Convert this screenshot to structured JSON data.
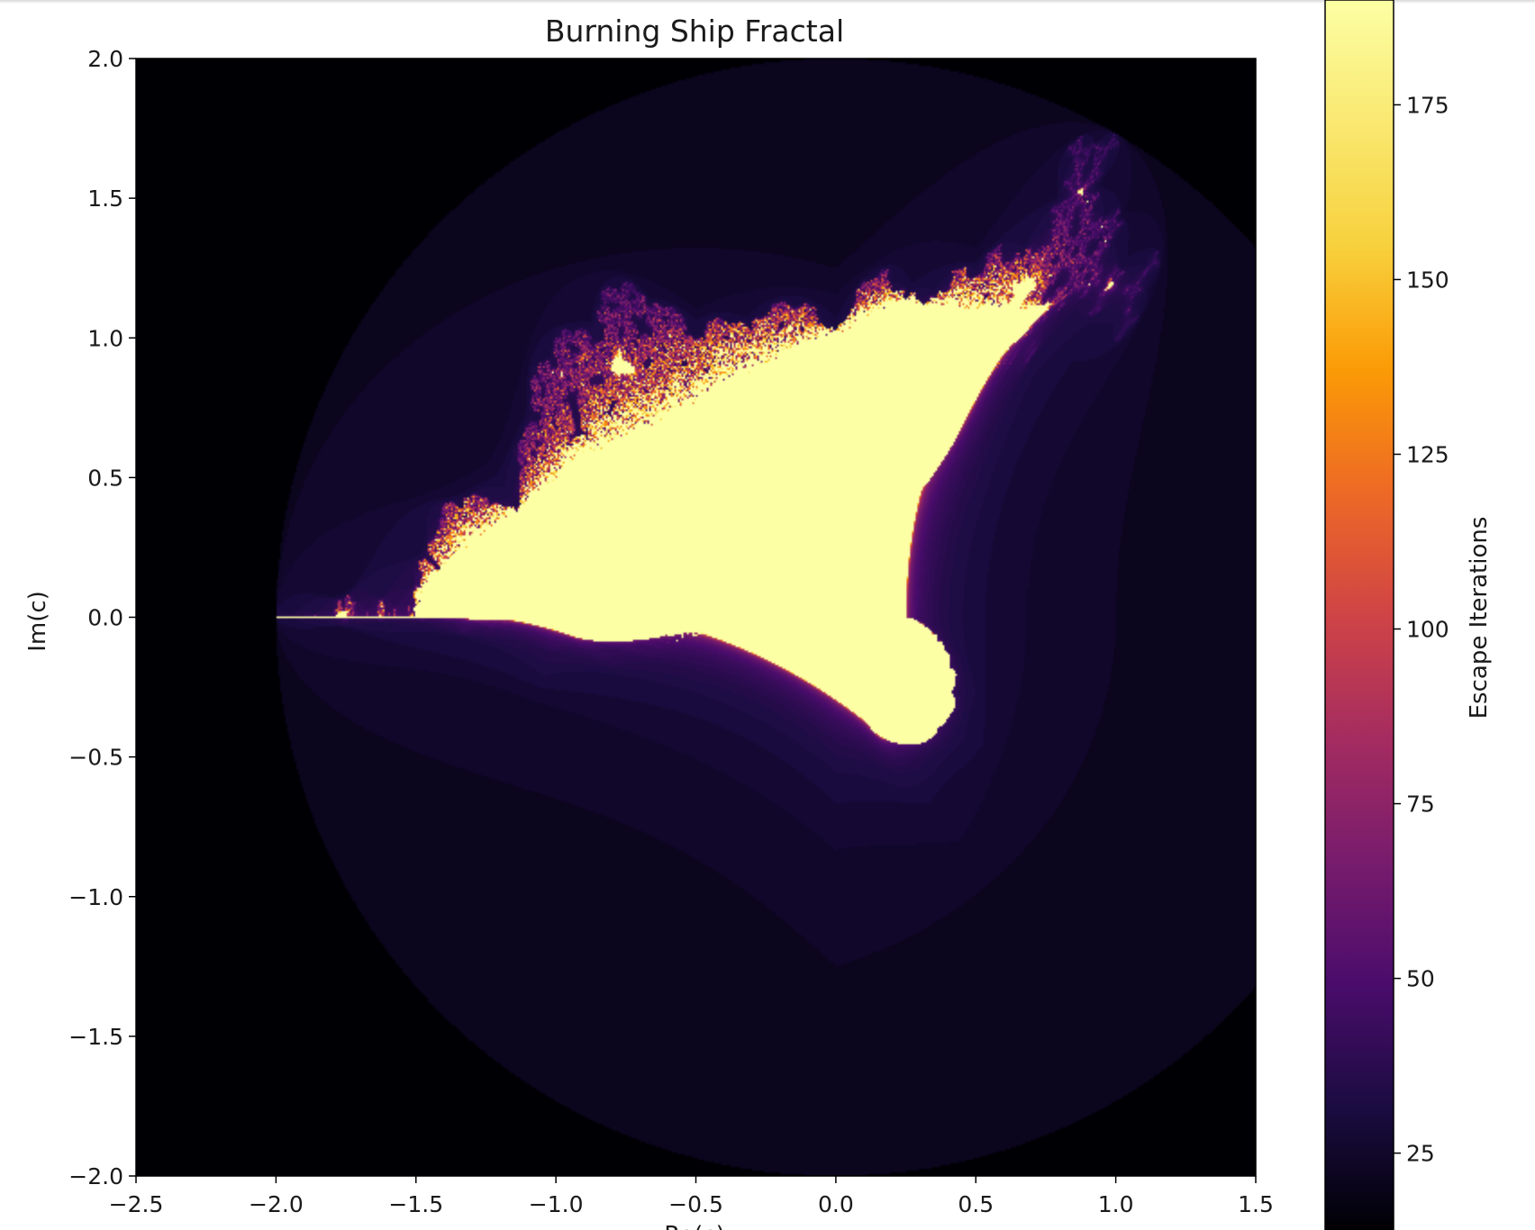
{
  "chart_data": {
    "type": "heatmap",
    "title": "Burning Ship Fractal",
    "xlabel": "Re(c)",
    "ylabel": "Im(c)",
    "xlim": [
      -2.5,
      1.5
    ],
    "ylim": [
      -2.0,
      2.0
    ],
    "x_ticks": [
      "−2.5",
      "−2.0",
      "−1.5",
      "−1.0",
      "−0.5",
      "0.0",
      "0.5",
      "1.0",
      "1.5"
    ],
    "y_ticks": [
      "−2.0",
      "−1.5",
      "−1.0",
      "−0.5",
      "0.0",
      "0.5",
      "1.0",
      "1.5",
      "2.0"
    ],
    "x_tick_values": [
      -2.5,
      -2.0,
      -1.5,
      -1.0,
      -0.5,
      0.0,
      0.5,
      1.0,
      1.5
    ],
    "y_tick_values": [
      -2.0,
      -1.5,
      -1.0,
      -0.5,
      0.0,
      0.5,
      1.0,
      1.5,
      2.0
    ],
    "colormap": "inferno",
    "colorbar": {
      "label": "Escape Iterations",
      "range": [
        14,
        190
      ],
      "ticks": [
        "25",
        "50",
        "75",
        "100",
        "125",
        "150",
        "175"
      ],
      "tick_values": [
        25,
        50,
        75,
        100,
        125,
        150,
        175
      ]
    },
    "max_iterations": 190,
    "grid": false,
    "colors": {
      "background": "#000004",
      "interior": "#fcffa4",
      "mid": "#bc3754"
    }
  }
}
